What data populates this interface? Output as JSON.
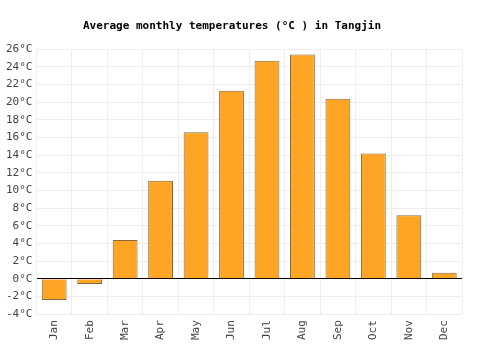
{
  "chart_data": {
    "type": "bar",
    "title": "Average monthly temperatures (°C ) in Tangjin",
    "categories": [
      "Jan",
      "Feb",
      "Mar",
      "Apr",
      "May",
      "Jun",
      "Jul",
      "Aug",
      "Sep",
      "Oct",
      "Nov",
      "Dec"
    ],
    "values": [
      -2.4,
      -0.6,
      4.4,
      11.1,
      16.6,
      21.3,
      24.7,
      25.4,
      20.4,
      14.2,
      7.2,
      0.7
    ],
    "color": "#ffa526",
    "ylim": [
      -4,
      26
    ],
    "yticks": [
      {
        "value": -4,
        "label": "-4°C"
      },
      {
        "value": -2,
        "label": "-2°C"
      },
      {
        "value": 0,
        "label": "0°C"
      },
      {
        "value": 2,
        "label": "2°C"
      },
      {
        "value": 4,
        "label": "4°C"
      },
      {
        "value": 6,
        "label": "6°C"
      },
      {
        "value": 8,
        "label": "8°C"
      },
      {
        "value": 10,
        "label": "10°C"
      },
      {
        "value": 12,
        "label": "12°C"
      },
      {
        "value": 14,
        "label": "14°C"
      },
      {
        "value": 16,
        "label": "16°C"
      },
      {
        "value": 18,
        "label": "18°C"
      },
      {
        "value": 20,
        "label": "20°C"
      },
      {
        "value": 22,
        "label": "22°C"
      },
      {
        "value": 24,
        "label": "24°C"
      },
      {
        "value": 26,
        "label": "26°C"
      }
    ],
    "grid": true
  }
}
